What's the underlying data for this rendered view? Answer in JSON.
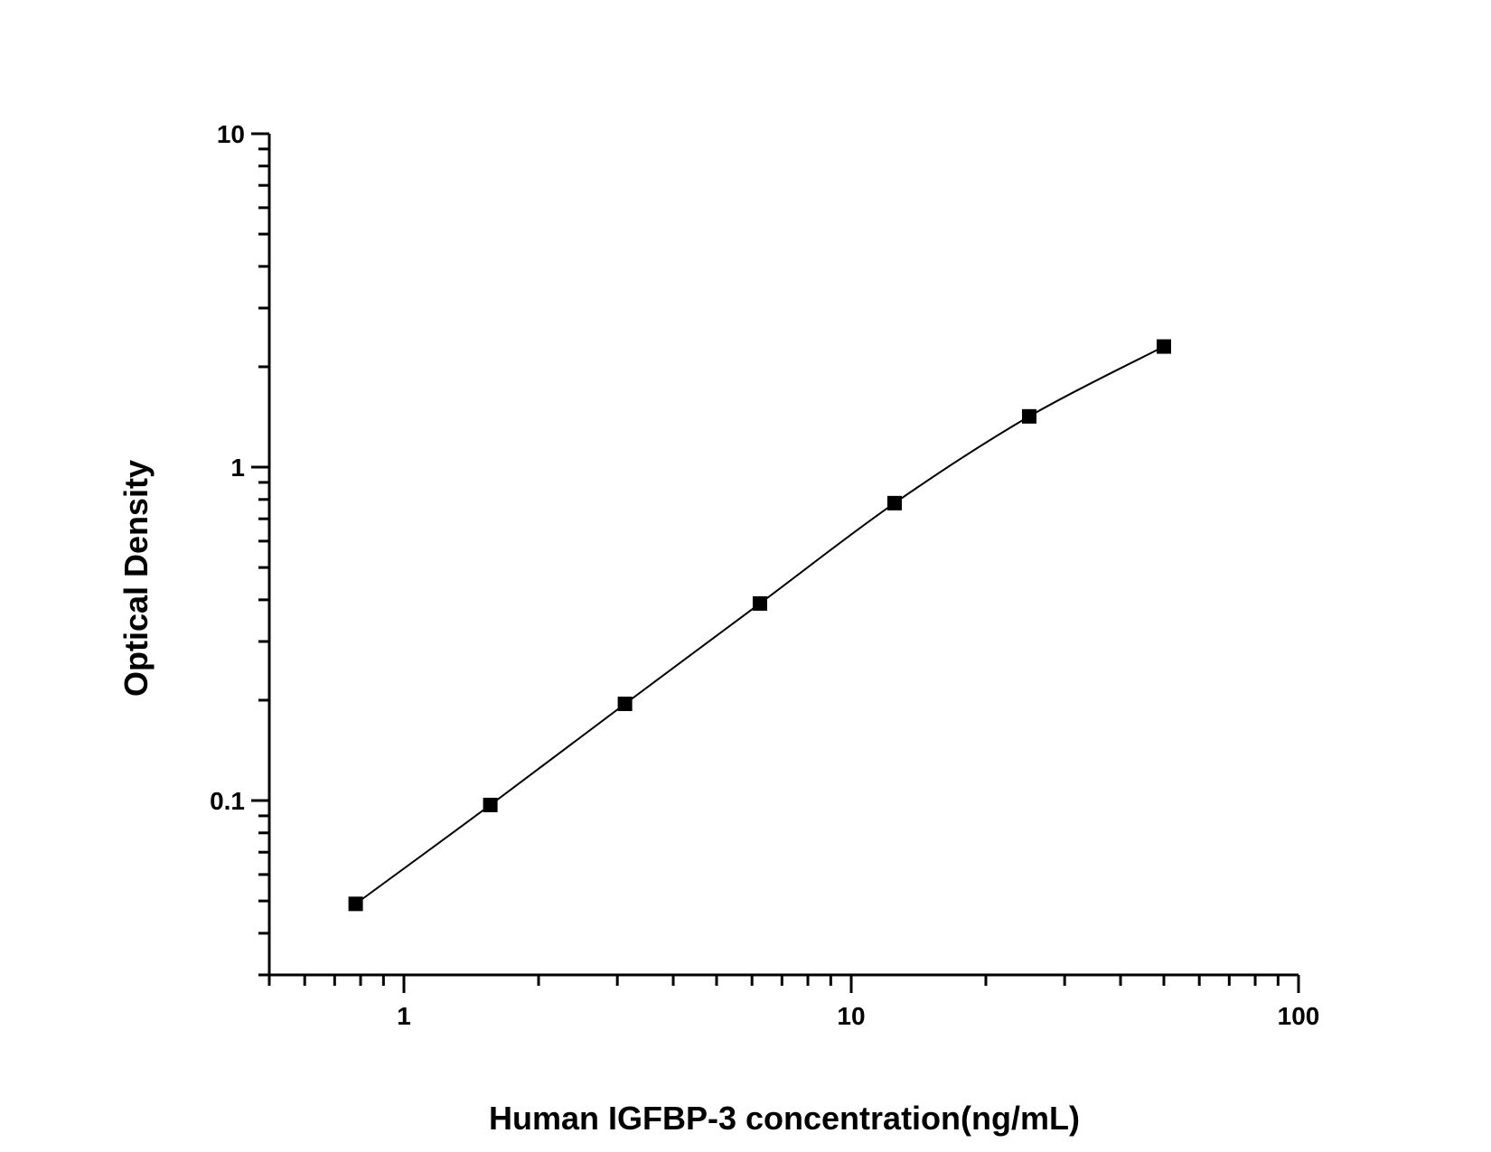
{
  "chart_data": {
    "type": "line",
    "title": "",
    "xlabel": "Human IGFBP-3 concentration(ng/mL)",
    "ylabel": "Optical Density",
    "xscale": "log",
    "yscale": "log",
    "xlim": [
      0.5,
      100
    ],
    "ylim": [
      0.03,
      10
    ],
    "x_ticks": [
      {
        "value": 1,
        "label": "1"
      },
      {
        "value": 10,
        "label": "10"
      },
      {
        "value": 100,
        "label": "100"
      }
    ],
    "y_ticks": [
      {
        "value": 0.1,
        "label": "0.1"
      },
      {
        "value": 1,
        "label": "1"
      },
      {
        "value": 10,
        "label": "10"
      }
    ],
    "grid": false,
    "legend": "none",
    "line_color": "#000000",
    "marker_color": "#000000",
    "marker": "square",
    "series": [
      {
        "x": [
          0.78,
          1.56,
          3.12,
          6.25,
          12.5,
          25,
          50
        ],
        "y": [
          0.049,
          0.097,
          0.195,
          0.39,
          0.78,
          1.42,
          2.3
        ]
      }
    ]
  }
}
